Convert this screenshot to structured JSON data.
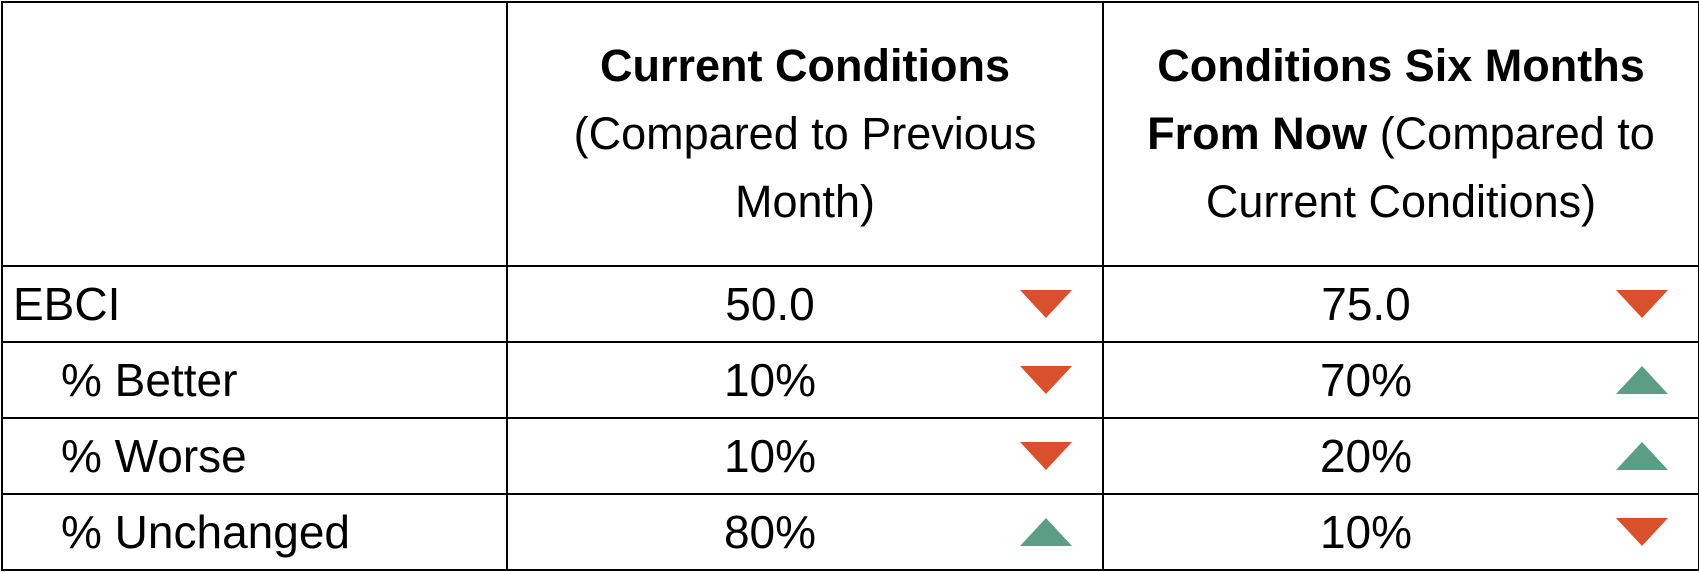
{
  "table": {
    "header": {
      "current": {
        "title": "Current Conditions",
        "note": "(Compared to Previous Month)"
      },
      "future": {
        "title": "Conditions Six Months From Now",
        "note": "(Compared to Current Conditions)"
      }
    },
    "rows": [
      {
        "label": "EBCI",
        "current": "50.0",
        "current_trend": "down",
        "future": "75.0",
        "future_trend": "down"
      },
      {
        "label": "% Better",
        "current": "10%",
        "current_trend": "down",
        "future": "70%",
        "future_trend": "up"
      },
      {
        "label": "% Worse",
        "current": "10%",
        "current_trend": "down",
        "future": "20%",
        "future_trend": "up"
      },
      {
        "label": "% Unchanged",
        "current": "80%",
        "current_trend": "up",
        "future": "10%",
        "future_trend": "down"
      }
    ],
    "trend_colors": {
      "up": "#5b9e84",
      "down": "#d8502c"
    }
  }
}
